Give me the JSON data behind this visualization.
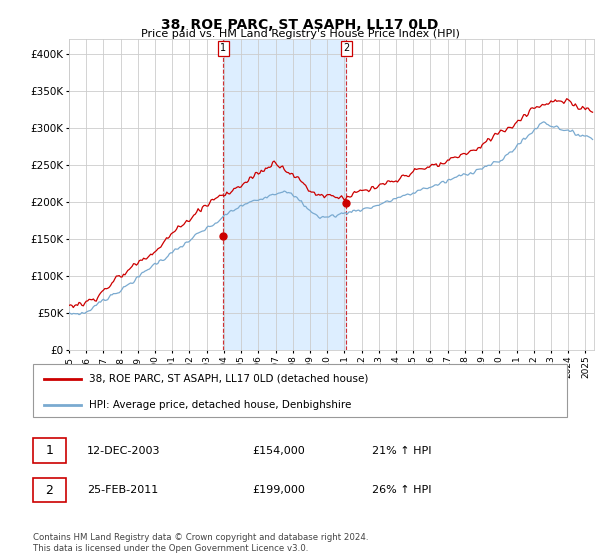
{
  "title": "38, ROE PARC, ST ASAPH, LL17 0LD",
  "subtitle": "Price paid vs. HM Land Registry's House Price Index (HPI)",
  "ylabel_ticks": [
    "£0",
    "£50K",
    "£100K",
    "£150K",
    "£200K",
    "£250K",
    "£300K",
    "£350K",
    "£400K"
  ],
  "ylim": [
    0,
    420000
  ],
  "xlim_start": 1995.0,
  "xlim_end": 2025.5,
  "sale1_x": 2003.95,
  "sale1_y": 154000,
  "sale2_x": 2011.12,
  "sale2_y": 199000,
  "shade_color": "#ddeeff",
  "red_color": "#cc0000",
  "blue_color": "#7aaad0",
  "legend_entry1": "38, ROE PARC, ST ASAPH, LL17 0LD (detached house)",
  "legend_entry2": "HPI: Average price, detached house, Denbighshire",
  "table_row1": [
    "1",
    "12-DEC-2003",
    "£154,000",
    "21% ↑ HPI"
  ],
  "table_row2": [
    "2",
    "25-FEB-2011",
    "£199,000",
    "26% ↑ HPI"
  ],
  "footer": "Contains HM Land Registry data © Crown copyright and database right 2024.\nThis data is licensed under the Open Government Licence v3.0.",
  "grid_color": "#cccccc"
}
